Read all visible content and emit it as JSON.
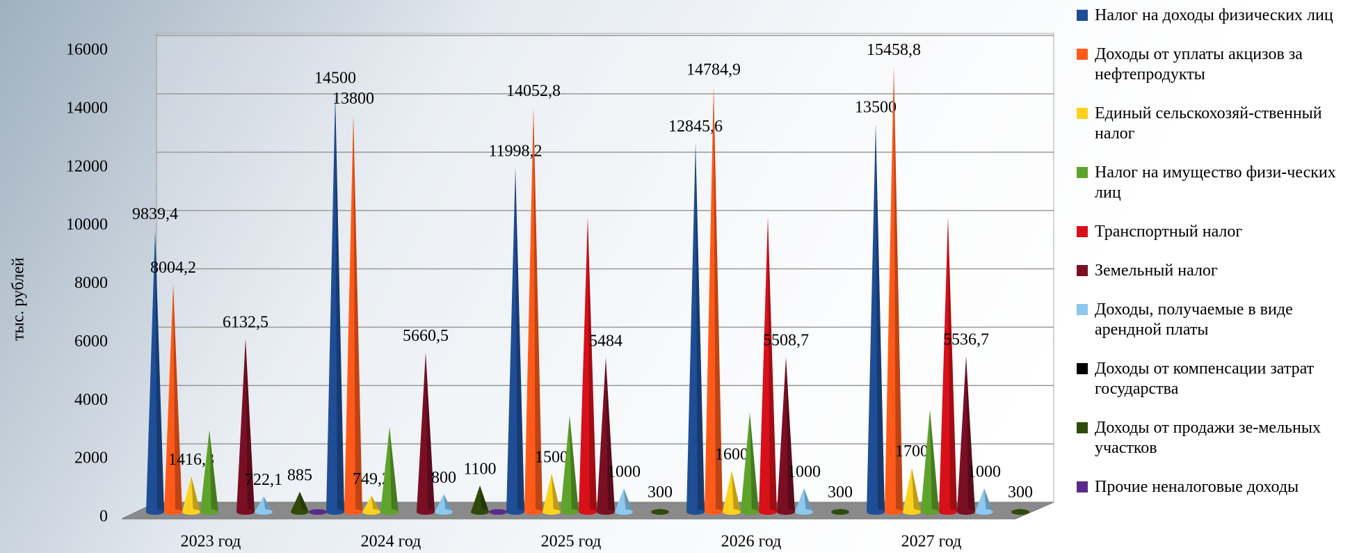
{
  "chart_data": {
    "type": "cone3d",
    "y_axis_label": "тыс. рублей",
    "categories": [
      "2023 год",
      "2024 год",
      "2025 год",
      "2026 год",
      "2027 год"
    ],
    "ylim": [
      0,
      16000
    ],
    "yticks": [
      0,
      2000,
      4000,
      6000,
      8000,
      10000,
      12000,
      14000,
      16000
    ],
    "grid": true,
    "legend": "right",
    "series": [
      {
        "name": "Налог на доходы физических лиц",
        "color": "#1f4e96",
        "values": [
          9839.4,
          14500,
          11998.2,
          12845.6,
          13500
        ],
        "value_labels": [
          "9839,4",
          "14500",
          "11998,2",
          "12845,6",
          "13500"
        ]
      },
      {
        "name": "Доходы от уплаты акцизов за нефтепродукты",
        "color": "#ff5a1a",
        "values": [
          8004.2,
          13800,
          14052.8,
          14784.9,
          15458.8
        ],
        "value_labels": [
          "8004,2",
          "13800",
          "14052,8",
          "14784,9",
          "15458,8"
        ]
      },
      {
        "name": "Единый сельскохозяй-ственный налог",
        "color": "#ffd21f",
        "values": [
          1416.3,
          749.2,
          1500,
          1600,
          1700
        ],
        "value_labels": [
          "1416,3",
          "749,2",
          "1500",
          "1600",
          "1700"
        ]
      },
      {
        "name": "Налог на имущество физи-ческих лиц",
        "color": "#5ea32a",
        "values": [
          3000,
          3100,
          3500,
          3600,
          3700
        ]
      },
      {
        "name": "Транспортный налог",
        "color": "#d8101a",
        "values": [
          null,
          null,
          10300,
          10300,
          10300
        ]
      },
      {
        "name": "Земельный налог",
        "color": "#7a0f24",
        "values": [
          6132.5,
          5660.5,
          5484,
          5508.7,
          5536.7
        ],
        "value_labels": [
          "6132,5",
          "5660,5",
          "5484",
          "5508,7",
          "5536,7"
        ]
      },
      {
        "name": "Доходы, получаемые в виде арендной платы",
        "color": "#8cc8f0",
        "values": [
          722.1,
          800,
          1000,
          1000,
          1000
        ],
        "value_labels": [
          "722,1",
          "800",
          "1000",
          "1000",
          "1000"
        ]
      },
      {
        "name": "Доходы от компенсации затрат государства",
        "color": "#000000",
        "values": [
          null,
          null,
          null,
          null,
          null
        ]
      },
      {
        "name": "Доходы от продажи зе-мельных участков",
        "color": "#2f4a0a",
        "values": [
          885,
          1100,
          300,
          300,
          300
        ],
        "value_labels": [
          "885",
          "1100",
          "300",
          "300",
          "300"
        ]
      },
      {
        "name": "Прочие неналоговые доходы",
        "color": "#5a2a8a",
        "values": [
          150,
          150,
          null,
          null,
          null
        ]
      }
    ]
  }
}
